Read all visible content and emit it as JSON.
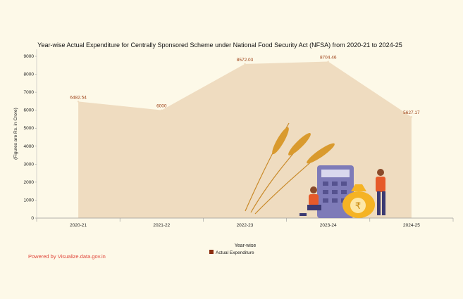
{
  "chart_data": {
    "type": "area",
    "title": "Year-wise Actual Expenditure for Centrally Sponsored Scheme under National Food Security Act (NFSA) from 2020-21 to 2024-25",
    "xlabel": "Year-wise",
    "ylabel": "(Figures are Rs. in Crore)",
    "categories": [
      "2020-21",
      "2021-22",
      "2022-23",
      "2023-24",
      "2024-25"
    ],
    "series": [
      {
        "name": "Actual Expenditure",
        "values": [
          6482.54,
          6000,
          8572.03,
          8704.46,
          5627.17
        ]
      }
    ],
    "data_labels": [
      "6482.54",
      "6000",
      "8572.03",
      "8704.46",
      "5627.17"
    ],
    "ylim": [
      0,
      9000
    ],
    "yticks": [
      0,
      1000,
      2000,
      3000,
      4000,
      5000,
      6000,
      7000,
      8000,
      9000
    ],
    "grid": false,
    "legend_position": "bottom",
    "colors": {
      "area": "#efdcc0",
      "series": "#8b2e0f",
      "label": "#9b3d12"
    }
  },
  "footer": {
    "powered_by": "Powered by Visualize.data.gov.in"
  }
}
